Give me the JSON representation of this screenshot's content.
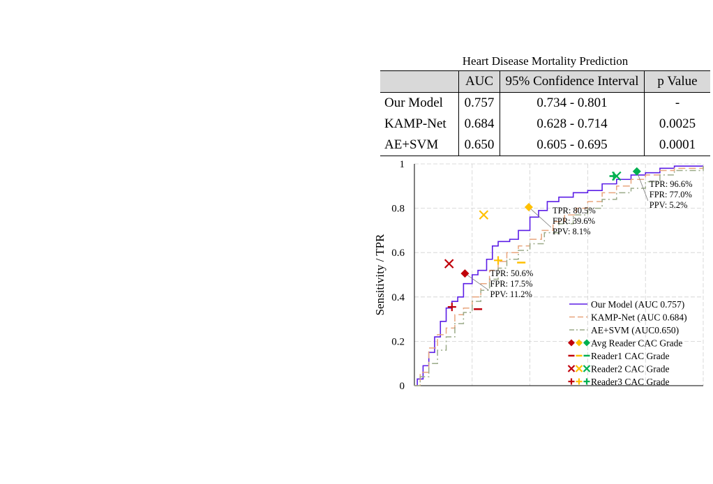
{
  "table": {
    "title": "Heart Disease Mortality Prediction",
    "headers": [
      "",
      "AUC",
      "95% Confidence Interval",
      "p Value"
    ],
    "rows": [
      [
        "Our Model",
        "0.757",
        "0.734 - 0.801",
        "-"
      ],
      [
        "KAMP-Net",
        "0.684",
        "0.628 - 0.714",
        "0.0025"
      ],
      [
        "AE+SVM",
        "0.650",
        "0.605 - 0.695",
        "0.0001"
      ]
    ]
  },
  "chart_data": {
    "type": "line",
    "title": "",
    "xlabel": "",
    "ylabel": "Sensitivity / TPR",
    "xlim": [
      0,
      1
    ],
    "ylim": [
      0,
      1
    ],
    "yticks": [
      "0",
      "0.2",
      "0.4",
      "0.6",
      "0.8",
      "1"
    ],
    "grid": true,
    "legend_position": "bottom-right",
    "series": [
      {
        "name": "Our Model (AUC 0.757)",
        "color": "#5b1de6",
        "style": "solid",
        "points": [
          [
            0,
            0
          ],
          [
            0.01,
            0.03
          ],
          [
            0.03,
            0.09
          ],
          [
            0.05,
            0.15
          ],
          [
            0.07,
            0.22
          ],
          [
            0.09,
            0.29
          ],
          [
            0.11,
            0.35
          ],
          [
            0.13,
            0.38
          ],
          [
            0.15,
            0.4
          ],
          [
            0.17,
            0.46
          ],
          [
            0.2,
            0.5
          ],
          [
            0.22,
            0.52
          ],
          [
            0.25,
            0.57
          ],
          [
            0.27,
            0.63
          ],
          [
            0.29,
            0.65
          ],
          [
            0.33,
            0.66
          ],
          [
            0.36,
            0.7
          ],
          [
            0.4,
            0.76
          ],
          [
            0.43,
            0.79
          ],
          [
            0.46,
            0.83
          ],
          [
            0.5,
            0.85
          ],
          [
            0.55,
            0.87
          ],
          [
            0.6,
            0.88
          ],
          [
            0.65,
            0.91
          ],
          [
            0.7,
            0.93
          ],
          [
            0.75,
            0.95
          ],
          [
            0.8,
            0.96
          ],
          [
            0.85,
            0.98
          ],
          [
            0.9,
            0.99
          ],
          [
            1,
            0.99
          ]
        ]
      },
      {
        "name": "KAMP-Net (AUC 0.684)",
        "color": "#e8a57d",
        "style": "dash",
        "points": [
          [
            0,
            0
          ],
          [
            0.02,
            0.06
          ],
          [
            0.05,
            0.17
          ],
          [
            0.08,
            0.23
          ],
          [
            0.11,
            0.26
          ],
          [
            0.14,
            0.32
          ],
          [
            0.17,
            0.35
          ],
          [
            0.2,
            0.4
          ],
          [
            0.23,
            0.46
          ],
          [
            0.26,
            0.52
          ],
          [
            0.29,
            0.56
          ],
          [
            0.32,
            0.6
          ],
          [
            0.36,
            0.63
          ],
          [
            0.4,
            0.66
          ],
          [
            0.44,
            0.7
          ],
          [
            0.48,
            0.74
          ],
          [
            0.52,
            0.77
          ],
          [
            0.56,
            0.8
          ],
          [
            0.6,
            0.83
          ],
          [
            0.65,
            0.87
          ],
          [
            0.7,
            0.9
          ],
          [
            0.75,
            0.93
          ],
          [
            0.8,
            0.95
          ],
          [
            0.85,
            0.97
          ],
          [
            0.9,
            0.98
          ],
          [
            1,
            0.99
          ]
        ]
      },
      {
        "name": "AE+SVM (AUC0.650)",
        "color": "#9aaa88",
        "style": "dashdot",
        "points": [
          [
            0,
            0
          ],
          [
            0.02,
            0.04
          ],
          [
            0.05,
            0.1
          ],
          [
            0.08,
            0.16
          ],
          [
            0.11,
            0.22
          ],
          [
            0.14,
            0.28
          ],
          [
            0.17,
            0.33
          ],
          [
            0.2,
            0.38
          ],
          [
            0.23,
            0.43
          ],
          [
            0.26,
            0.48
          ],
          [
            0.29,
            0.53
          ],
          [
            0.32,
            0.57
          ],
          [
            0.36,
            0.61
          ],
          [
            0.4,
            0.64
          ],
          [
            0.45,
            0.69
          ],
          [
            0.5,
            0.73
          ],
          [
            0.55,
            0.77
          ],
          [
            0.6,
            0.8
          ],
          [
            0.65,
            0.84
          ],
          [
            0.7,
            0.87
          ],
          [
            0.75,
            0.89
          ],
          [
            0.8,
            0.92
          ],
          [
            0.85,
            0.95
          ],
          [
            0.9,
            0.97
          ],
          [
            1,
            0.99
          ]
        ]
      }
    ],
    "markers": [
      {
        "group": "Avg Reader CAC Grade",
        "shape": "diamond",
        "color": "#c0000a",
        "x": 0.175,
        "y": 0.506
      },
      {
        "group": "Avg Reader CAC Grade",
        "shape": "diamond",
        "color": "#ffc000",
        "x": 0.396,
        "y": 0.805
      },
      {
        "group": "Avg Reader CAC Grade",
        "shape": "diamond",
        "color": "#00b050",
        "x": 0.77,
        "y": 0.966
      },
      {
        "group": "Reader1 CAC Grade",
        "shape": "dash",
        "color": "#c0000a",
        "x": 0.22,
        "y": 0.345
      },
      {
        "group": "Reader1 CAC Grade",
        "shape": "dash",
        "color": "#ffc000",
        "x": 0.37,
        "y": 0.555
      },
      {
        "group": "Reader1 CAC Grade",
        "shape": "dash",
        "color": "#00b050",
        "x": 0.69,
        "y": 0.945
      },
      {
        "group": "Reader2 CAC Grade",
        "shape": "x",
        "color": "#c0000a",
        "x": 0.12,
        "y": 0.55
      },
      {
        "group": "Reader2 CAC Grade",
        "shape": "x",
        "color": "#ffc000",
        "x": 0.24,
        "y": 0.77
      },
      {
        "group": "Reader2 CAC Grade",
        "shape": "x",
        "color": "#00b050",
        "x": 0.7,
        "y": 0.945
      },
      {
        "group": "Reader3 CAC Grade",
        "shape": "plus",
        "color": "#c0000a",
        "x": 0.13,
        "y": 0.355
      },
      {
        "group": "Reader3 CAC Grade",
        "shape": "plus",
        "color": "#ffc000",
        "x": 0.29,
        "y": 0.565
      },
      {
        "group": "Reader3 CAC Grade",
        "shape": "plus",
        "color": "#00b050",
        "x": 0.69,
        "y": 0.945
      }
    ],
    "annotations": [
      {
        "lines": [
          "TPR: 50.6%",
          "FPR: 17.5%",
          "PPV: 11.2%"
        ],
        "x": 0.175,
        "y": 0.506
      },
      {
        "lines": [
          "TPR: 80.5%",
          "FPR: 39.6%",
          "PPV: 8.1%"
        ],
        "x": 0.396,
        "y": 0.805
      },
      {
        "lines": [
          "TPR: 96.6%",
          "FPR: 77.0%",
          "PPV: 5.2%"
        ],
        "x": 0.77,
        "y": 0.966
      }
    ],
    "legend": [
      {
        "label": "Our Model (AUC 0.757)",
        "kind": "line",
        "series": 0
      },
      {
        "label": "KAMP-Net (AUC 0.684)",
        "kind": "line",
        "series": 1
      },
      {
        "label": "AE+SVM (AUC0.650)",
        "kind": "line",
        "series": 2
      },
      {
        "label": "Avg Reader CAC Grade",
        "kind": "marker",
        "shape": "diamond"
      },
      {
        "label": "Reader1 CAC Grade",
        "kind": "marker",
        "shape": "dash"
      },
      {
        "label": "Reader2 CAC Grade",
        "kind": "marker",
        "shape": "x"
      },
      {
        "label": "Reader3 CAC Grade",
        "kind": "marker",
        "shape": "plus"
      }
    ],
    "marker_colors": [
      "#c0000a",
      "#ffc000",
      "#00b050"
    ]
  }
}
